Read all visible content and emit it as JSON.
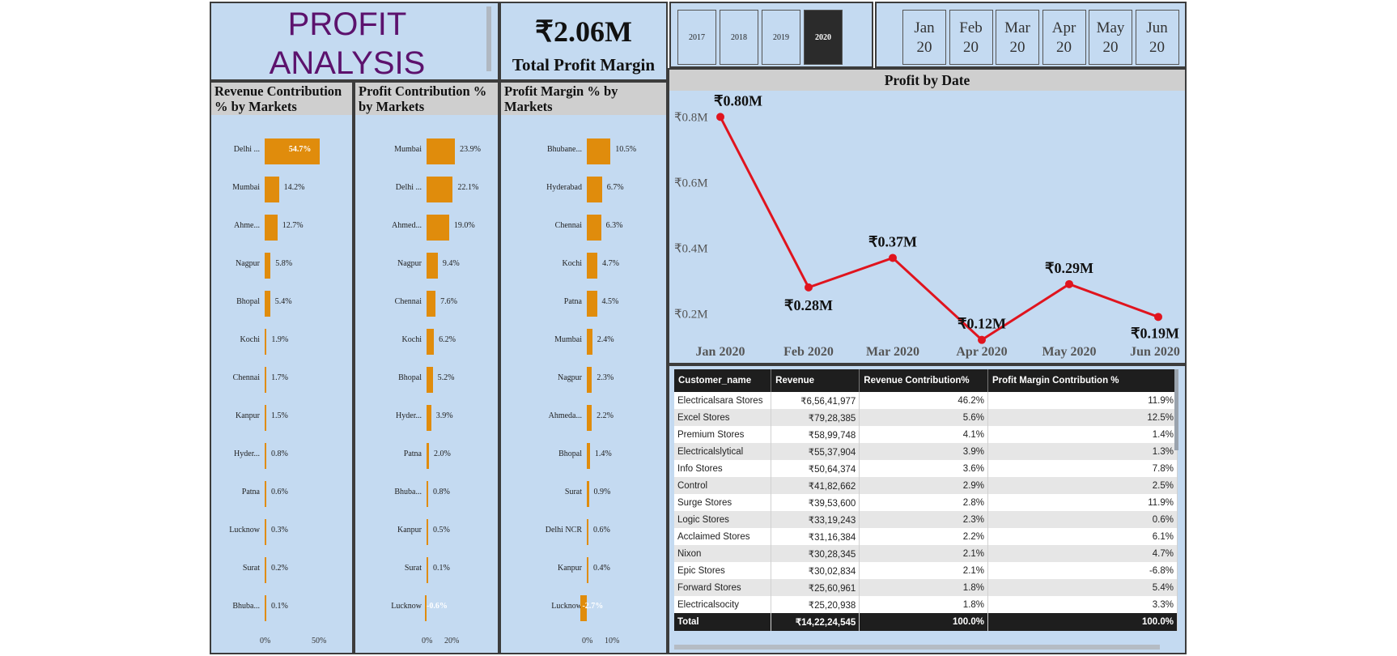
{
  "header": {
    "title": "PROFIT ANALYSIS",
    "title_line1": "PROFIT",
    "title_line2": "ANALYSIS",
    "kpi_value": "₹2.06M",
    "kpi_label": "Total Profit Margin"
  },
  "years": [
    {
      "label": "2017",
      "selected": false
    },
    {
      "label": "2018",
      "selected": false
    },
    {
      "label": "2019",
      "selected": false
    },
    {
      "label": "2020",
      "selected": true
    }
  ],
  "months": [
    {
      "line1": "Jan",
      "line2": "20"
    },
    {
      "line1": "Feb",
      "line2": "20"
    },
    {
      "line1": "Mar",
      "line2": "20"
    },
    {
      "line1": "Apr",
      "line2": "20"
    },
    {
      "line1": "May",
      "line2": "20"
    },
    {
      "line1": "Jun",
      "line2": "20"
    }
  ],
  "colors": {
    "panel": "#c4daf1",
    "bar": "#e08c0c",
    "line": "#e0141e",
    "title": "#5c126d",
    "header_bg": "#cfcfcf",
    "table_header": "#1e1e1e"
  },
  "chart_data": [
    {
      "type": "bar",
      "title": "Revenue Contribution % by Markets",
      "categories": [
        "Delhi ...",
        "Mumbai",
        "Ahme...",
        "Nagpur",
        "Bhopal",
        "Kochi",
        "Chennai",
        "Kanpur",
        "Hyder...",
        "Patna",
        "Lucknow",
        "Surat",
        "Bhuba..."
      ],
      "labels": [
        "54.7%",
        "14.2%",
        "12.7%",
        "5.8%",
        "5.4%",
        "1.9%",
        "1.7%",
        "1.5%",
        "0.8%",
        "0.6%",
        "0.3%",
        "0.2%",
        "0.1%"
      ],
      "values": [
        54.7,
        14.2,
        12.7,
        5.8,
        5.4,
        1.9,
        1.7,
        1.5,
        0.8,
        0.6,
        0.3,
        0.2,
        0.1
      ],
      "x_ticks": [
        "0%",
        "50%"
      ],
      "xlim": [
        0,
        100
      ]
    },
    {
      "type": "bar",
      "title": "Profit Contribution % by Markets",
      "categories": [
        "Mumbai",
        "Delhi ...",
        "Ahmed...",
        "Nagpur",
        "Chennai",
        "Kochi",
        "Bhopal",
        "Hyder...",
        "Patna",
        "Bhuba...",
        "Kanpur",
        "Surat",
        "Lucknow"
      ],
      "labels": [
        "23.9%",
        "22.1%",
        "19.0%",
        "9.4%",
        "7.6%",
        "6.2%",
        "5.2%",
        "3.9%",
        "2.0%",
        "0.8%",
        "0.5%",
        "0.1%",
        "-0.6%"
      ],
      "values": [
        23.9,
        22.1,
        19.0,
        9.4,
        7.6,
        6.2,
        5.2,
        3.9,
        2.0,
        0.8,
        0.5,
        0.1,
        -0.6
      ],
      "x_ticks": [
        "0%",
        "20%"
      ],
      "xlim": [
        -2,
        40
      ]
    },
    {
      "type": "bar",
      "title": "Profit Margin % by Markets",
      "categories": [
        "Bhubane...",
        "Hyderabad",
        "Chennai",
        "Kochi",
        "Patna",
        "Mumbai",
        "Nagpur",
        "Ahmeda...",
        "Bhopal",
        "Surat",
        "Delhi NCR",
        "Kanpur",
        "Lucknow"
      ],
      "labels": [
        "10.5%",
        "6.7%",
        "6.3%",
        "4.7%",
        "4.5%",
        "2.4%",
        "2.3%",
        "2.2%",
        "1.4%",
        "0.9%",
        "0.6%",
        "0.4%",
        "-2.7%"
      ],
      "values": [
        10.5,
        6.7,
        6.3,
        4.7,
        4.5,
        2.4,
        2.3,
        2.2,
        1.4,
        0.9,
        0.6,
        0.4,
        -2.7
      ],
      "x_ticks": [
        "0%",
        "10%"
      ],
      "xlim": [
        -5,
        20
      ]
    },
    {
      "type": "line",
      "title": "Profit by Date",
      "categories": [
        "Jan 2020",
        "Feb 2020",
        "Mar 2020",
        "Apr 2020",
        "May 2020",
        "Jun 2020"
      ],
      "values": [
        0.8,
        0.28,
        0.37,
        0.12,
        0.29,
        0.19
      ],
      "labels": [
        "₹0.80M",
        "₹0.28M",
        "₹0.37M",
        "₹0.12M",
        "₹0.29M",
        "₹0.19M"
      ],
      "y_ticks": [
        {
          "value": 0.8,
          "label": "₹0.8M"
        },
        {
          "value": 0.6,
          "label": "₹0.6M"
        },
        {
          "value": 0.4,
          "label": "₹0.4M"
        },
        {
          "value": 0.2,
          "label": "₹0.2M"
        }
      ],
      "ylim": [
        0.05,
        0.88
      ]
    }
  ],
  "table": {
    "columns": [
      "Customer_name",
      "Revenue",
      "Revenue Contribution%",
      "Profit Margin Contribution %"
    ],
    "rows": [
      [
        "Electricalsara Stores",
        "₹6,56,41,977",
        "46.2%",
        "11.9%"
      ],
      [
        "Excel Stores",
        "₹79,28,385",
        "5.6%",
        "12.5%"
      ],
      [
        "Premium Stores",
        "₹58,99,748",
        "4.1%",
        "1.4%"
      ],
      [
        "Electricalslytical",
        "₹55,37,904",
        "3.9%",
        "1.3%"
      ],
      [
        "Info Stores",
        "₹50,64,374",
        "3.6%",
        "7.8%"
      ],
      [
        "Control",
        "₹41,82,662",
        "2.9%",
        "2.5%"
      ],
      [
        "Surge Stores",
        "₹39,53,600",
        "2.8%",
        "11.9%"
      ],
      [
        "Logic Stores",
        "₹33,19,243",
        "2.3%",
        "0.6%"
      ],
      [
        "Acclaimed Stores",
        "₹31,16,384",
        "2.2%",
        "6.1%"
      ],
      [
        "Nixon",
        "₹30,28,345",
        "2.1%",
        "4.7%"
      ],
      [
        "Epic Stores",
        "₹30,02,834",
        "2.1%",
        "-6.8%"
      ],
      [
        "Forward Stores",
        "₹25,60,961",
        "1.8%",
        "5.4%"
      ],
      [
        "Electricalsocity",
        "₹25,20,938",
        "1.8%",
        "3.3%"
      ]
    ],
    "total": [
      "Total",
      "₹14,22,24,545",
      "100.0%",
      "100.0%"
    ]
  }
}
